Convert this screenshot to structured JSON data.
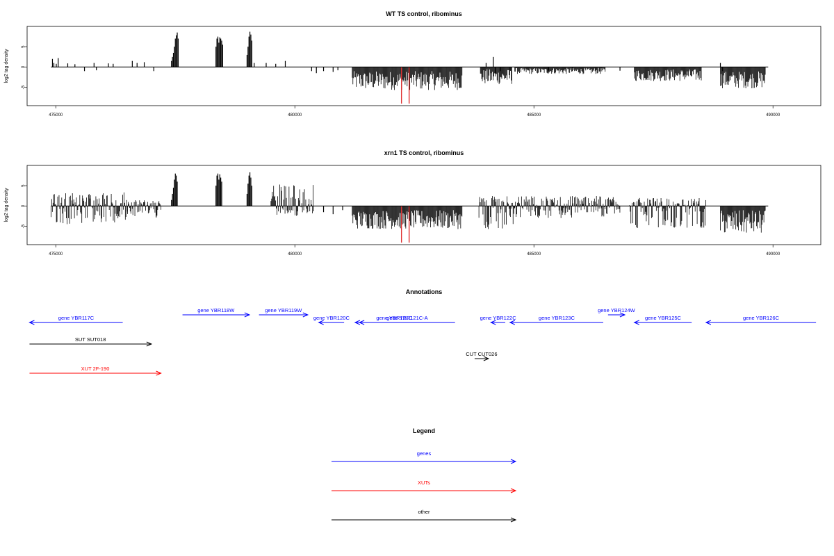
{
  "chart_data": [
    {
      "type": "bar",
      "title": "WT TS control, ribominus",
      "xlabel": "",
      "ylabel": "log2 tag density",
      "xlim": [
        474400,
        491000
      ],
      "ylim": [
        -9.5,
        10
      ],
      "xticks": [
        475000,
        480000,
        485000,
        490000
      ],
      "xtick_labels": [
        "475000",
        "480000",
        "485000",
        "490000"
      ],
      "yticks": [
        5,
        0,
        -5
      ],
      "ytick_labels": [
        "5",
        "0",
        "-5"
      ],
      "baseline": {
        "from": 474900,
        "to": 489900
      },
      "series": [
        {
          "values": [
            [
              474930,
              2.0
            ],
            [
              474960,
              1.0
            ],
            [
              475010,
              0.8
            ],
            [
              475050,
              2.2
            ],
            [
              475250,
              0.9
            ],
            [
              475400,
              0.7
            ],
            [
              475600,
              -1.0
            ],
            [
              475800,
              1.0
            ],
            [
              475850,
              -0.8
            ],
            [
              476100,
              0.9
            ],
            [
              476200,
              0.8
            ],
            [
              476600,
              1.5
            ],
            [
              476700,
              1.0
            ],
            [
              476850,
              1.2
            ],
            [
              477050,
              -1.0
            ],
            [
              477420,
              1.5
            ],
            [
              477440,
              2.5
            ],
            [
              477460,
              3.5
            ],
            [
              477480,
              5.0
            ],
            [
              477500,
              7.0
            ],
            [
              477520,
              7.8
            ],
            [
              477540,
              8.5
            ],
            [
              477560,
              7.0
            ],
            [
              478350,
              5.0
            ],
            [
              478370,
              7.0
            ],
            [
              478390,
              7.5
            ],
            [
              478410,
              6.0
            ],
            [
              478430,
              7.3
            ],
            [
              478450,
              7.0
            ],
            [
              478470,
              6.5
            ],
            [
              478490,
              5.5
            ],
            [
              479000,
              3.0
            ],
            [
              479020,
              5.0
            ],
            [
              479040,
              7.5
            ],
            [
              479060,
              8.7
            ],
            [
              479080,
              8.0
            ],
            [
              479100,
              6.5
            ],
            [
              479150,
              1.0
            ],
            [
              479400,
              1.0
            ],
            [
              479600,
              0.8
            ],
            [
              479800,
              1.5
            ],
            [
              480350,
              -1.0
            ],
            [
              480450,
              -1.5
            ],
            [
              480600,
              -1.0
            ],
            [
              480800,
              -1.2
            ],
            [
              480900,
              -0.8
            ],
            [
              484150,
              2.5
            ],
            [
              484200,
              -1.5
            ],
            [
              484000,
              1.0
            ],
            [
              484300,
              -1.0
            ],
            [
              484500,
              -0.8
            ],
            [
              485300,
              -0.9
            ],
            [
              485800,
              -1.0
            ],
            [
              486300,
              -0.8
            ],
            [
              486800,
              -0.9
            ],
            [
              488900,
              1.0
            ],
            [
              488950,
              -1.0
            ]
          ]
        },
        {
          "ranges": [
            {
              "from": 481200,
              "to": 483500,
              "min": -6.5,
              "max": -1
            },
            {
              "from": 483880,
              "to": 484550,
              "min": -5,
              "max": -0.5
            },
            {
              "from": 484600,
              "to": 486500,
              "min": -2,
              "max": -0.2
            },
            {
              "from": 487100,
              "to": 488500,
              "min": -4,
              "max": -0.5
            },
            {
              "from": 488900,
              "to": 489850,
              "min": -6,
              "max": -1
            }
          ]
        },
        {
          "name": "",
          "color": "#e03030",
          "values": [
            [
              482230,
              -9.0
            ],
            [
              482390,
              -9.0
            ]
          ]
        }
      ]
    },
    {
      "type": "bar",
      "title": "xrn1 TS control, ribominus",
      "xlabel": "",
      "ylabel": "log2 tag density",
      "xlim": [
        474400,
        491000
      ],
      "ylim": [
        -9.5,
        10
      ],
      "xticks": [
        475000,
        480000,
        485000,
        490000
      ],
      "xtick_labels": [
        "475000",
        "480000",
        "485000",
        "490000"
      ],
      "yticks": [
        5,
        0,
        -5
      ],
      "ytick_labels": [
        "5",
        "0",
        "-5"
      ],
      "baseline": {
        "from": 474900,
        "to": 489900
      },
      "series": [
        {
          "ranges": [
            {
              "from": 474900,
              "to": 476500,
              "min": -4.5,
              "max": 3.5
            },
            {
              "from": 476500,
              "to": 477200,
              "min": -2.5,
              "max": 1.5
            },
            {
              "from": 479500,
              "to": 480400,
              "min": -2.5,
              "max": 5.5
            },
            {
              "from": 481200,
              "to": 483500,
              "min": -6.5,
              "max": -1
            },
            {
              "from": 483850,
              "to": 484600,
              "min": -6,
              "max": 2.5
            },
            {
              "from": 484600,
              "to": 486800,
              "min": -3,
              "max": 2.5
            },
            {
              "from": 487000,
              "to": 488600,
              "min": -5.5,
              "max": 2
            },
            {
              "from": 488900,
              "to": 489850,
              "min": -8,
              "max": -1
            }
          ]
        },
        {
          "values": [
            [
              477100,
              -2.8
            ],
            [
              477420,
              1.5
            ],
            [
              477440,
              3.0
            ],
            [
              477460,
              4.5
            ],
            [
              477480,
              6.5
            ],
            [
              477500,
              8.0
            ],
            [
              477520,
              7.5
            ],
            [
              477540,
              6.0
            ],
            [
              478350,
              5.0
            ],
            [
              478370,
              7.5
            ],
            [
              478390,
              8.0
            ],
            [
              478410,
              6.5
            ],
            [
              478430,
              7.8
            ],
            [
              478450,
              7.0
            ],
            [
              478470,
              6.0
            ],
            [
              479000,
              3.0
            ],
            [
              479020,
              5.5
            ],
            [
              479040,
              7.5
            ],
            [
              479060,
              8.3
            ],
            [
              479080,
              7.0
            ],
            [
              479100,
              5.0
            ],
            [
              480600,
              -1.5
            ],
            [
              480800,
              -2.0
            ],
            [
              481000,
              -1.0
            ]
          ]
        },
        {
          "name": "",
          "color": "#e03030",
          "values": [
            [
              482230,
              -9.0
            ],
            [
              482390,
              -9.0
            ]
          ]
        }
      ]
    }
  ],
  "annotations": {
    "title": "Annotations",
    "xlim": [
      474400,
      491000
    ],
    "items": [
      {
        "label": "gene YBR117C",
        "from": 476400,
        "to": 474450,
        "row": "mid",
        "color": "#0000ff"
      },
      {
        "label": "gene YBR118W",
        "from": 477650,
        "to": 479050,
        "row": "top",
        "color": "#0000ff"
      },
      {
        "label": "gene YBR119W",
        "from": 479250,
        "to": 480270,
        "row": "top",
        "color": "#0000ff"
      },
      {
        "label": "gene YBR120C",
        "from": 481030,
        "to": 480500,
        "row": "mid",
        "color": "#0000ff"
      },
      {
        "label": "gene YBR121C",
        "from": 482900,
        "to": 481260,
        "row": "mid",
        "color": "#0000ff"
      },
      {
        "label": "gene YBR121C-A",
        "from": 483350,
        "to": 481350,
        "row": "mid",
        "color": "#0000ff"
      },
      {
        "label": "gene YBR122C",
        "from": 484400,
        "to": 484100,
        "row": "mid",
        "color": "#0000ff"
      },
      {
        "label": "gene YBR123C",
        "from": 486450,
        "to": 484500,
        "row": "mid",
        "color": "#0000ff"
      },
      {
        "label": "gene YBR124W",
        "from": 486550,
        "to": 486900,
        "row": "top",
        "color": "#0000ff"
      },
      {
        "label": "gene YBR125C",
        "from": 488300,
        "to": 487100,
        "row": "mid",
        "color": "#0000ff"
      },
      {
        "label": "gene YBR126C",
        "from": 490900,
        "to": 488600,
        "row": "mid",
        "color": "#0000ff"
      },
      {
        "label": "SUT SUT018",
        "from": 474450,
        "to": 477000,
        "row": "sut",
        "color": "#000000"
      },
      {
        "label": "CUT CUT026",
        "from": 483760,
        "to": 484050,
        "row": "cut",
        "color": "#000000"
      },
      {
        "label": "XUT 2F-190",
        "from": 474450,
        "to": 477200,
        "row": "xut",
        "color": "#ff0000"
      }
    ]
  },
  "legend": {
    "title": "Legend",
    "items": [
      {
        "label": "genes",
        "color": "#0000ff"
      },
      {
        "label": "XUTs",
        "color": "#ff0000"
      },
      {
        "label": "other",
        "color": "#000000"
      }
    ]
  }
}
